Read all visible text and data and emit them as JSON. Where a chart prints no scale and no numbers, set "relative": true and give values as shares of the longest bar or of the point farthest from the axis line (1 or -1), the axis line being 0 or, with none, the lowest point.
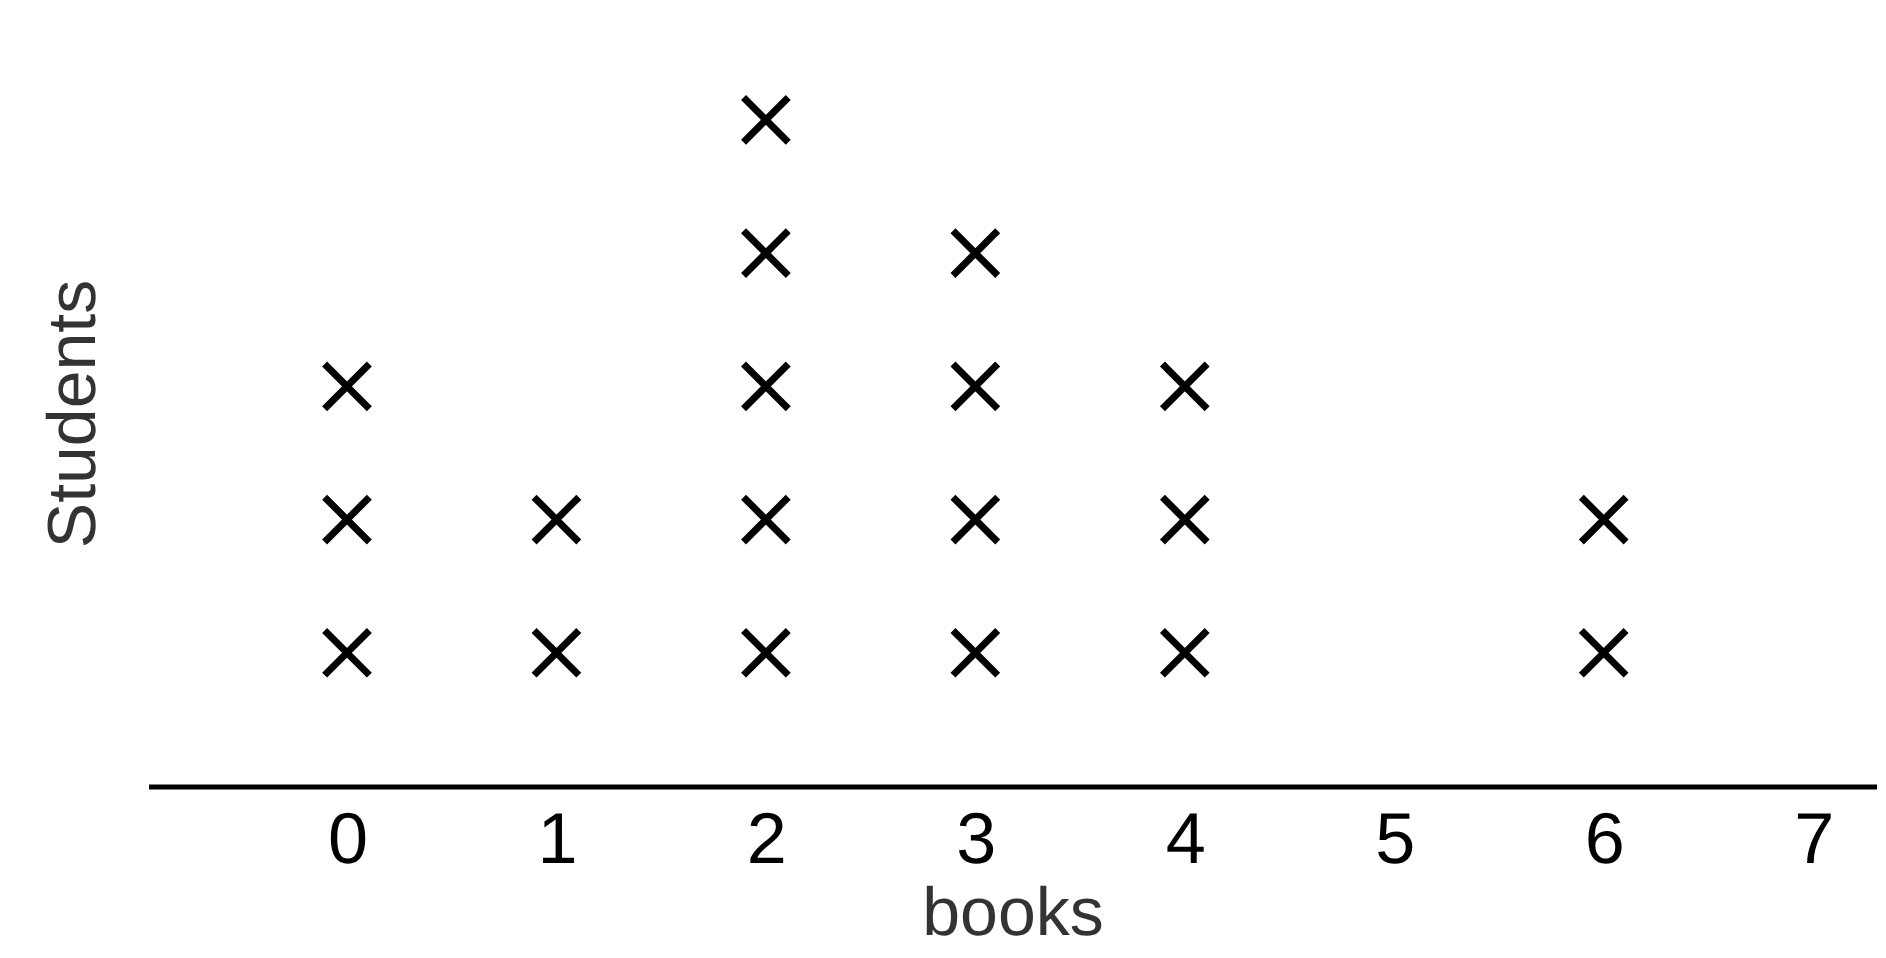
{
  "chart_data": {
    "type": "scatter",
    "relative": true,
    "marker": "cross",
    "color": "#000000",
    "xlabel": "books",
    "ylabel": "Students",
    "xlim": [
      -0.95,
      7.3
    ],
    "xticks": [
      0,
      1,
      2,
      3,
      4,
      5,
      6,
      7
    ],
    "grid": false,
    "x": [
      0,
      0,
      0,
      1,
      1,
      2,
      2,
      2,
      2,
      2,
      3,
      3,
      3,
      3,
      4,
      4,
      4,
      6,
      6
    ],
    "values": [
      0.2,
      0.4,
      0.6,
      0.2,
      0.4,
      0.2,
      0.4,
      0.6,
      0.8,
      1.0,
      0.2,
      0.4,
      0.6,
      0.8,
      0.2,
      0.4,
      0.6,
      0.2,
      0.4
    ]
  }
}
